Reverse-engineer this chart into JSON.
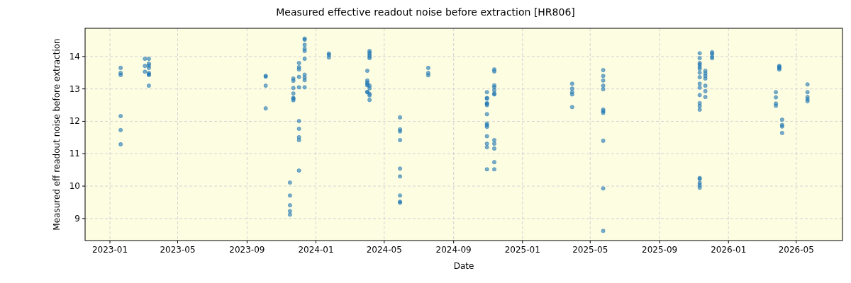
{
  "chart_data": {
    "type": "scatter",
    "title": "Measured effective readout noise before extraction [HR806]",
    "xlabel": "Date",
    "ylabel": "Measured eff readout noise before extraction",
    "xlim": [
      "2022-11-18",
      "2026-07-22"
    ],
    "ylim": [
      8.32,
      14.87
    ],
    "xticks": [
      "2023-01",
      "2023-05",
      "2023-09",
      "2024-01",
      "2024-05",
      "2024-09",
      "2025-01",
      "2025-05",
      "2025-09",
      "2026-01",
      "2026-05"
    ],
    "yticks": [
      9,
      10,
      11,
      12,
      13,
      14
    ],
    "grid": true,
    "marker": "circle",
    "series": [
      {
        "color": "#1f77b4",
        "x": [
          "2023-01-20",
          "2023-01-20",
          "2023-01-20",
          "2023-01-20",
          "2023-01-20",
          "2023-01-20",
          "2023-03-04",
          "2023-03-04",
          "2023-03-04",
          "2023-03-11",
          "2023-03-11",
          "2023-03-11",
          "2023-03-11",
          "2023-03-11",
          "2023-03-11",
          "2023-03-11",
          "2023-03-11",
          "2023-10-04",
          "2023-10-04",
          "2023-10-04",
          "2023-10-04",
          "2023-11-16",
          "2023-11-16",
          "2023-11-16",
          "2023-11-16",
          "2023-11-16",
          "2023-11-22",
          "2023-11-22",
          "2023-11-22",
          "2023-11-22",
          "2023-11-22",
          "2023-11-22",
          "2023-11-22",
          "2023-12-02",
          "2023-12-02",
          "2023-12-02",
          "2023-12-02",
          "2023-12-02",
          "2023-12-02",
          "2023-12-02",
          "2023-12-02",
          "2023-12-02",
          "2023-12-02",
          "2023-12-12",
          "2023-12-12",
          "2023-12-12",
          "2023-12-12",
          "2023-12-12",
          "2023-12-12",
          "2023-12-12",
          "2023-12-12",
          "2023-12-12",
          "2023-12-12",
          "2024-01-24",
          "2024-01-24",
          "2024-01-24",
          "2024-04-01",
          "2024-04-01",
          "2024-04-01",
          "2024-04-01",
          "2024-04-01",
          "2024-04-01",
          "2024-04-01",
          "2024-04-05",
          "2024-04-05",
          "2024-04-05",
          "2024-04-05",
          "2024-04-05",
          "2024-04-05",
          "2024-04-05",
          "2024-04-05",
          "2024-04-05",
          "2024-04-05",
          "2024-05-29",
          "2024-05-29",
          "2024-05-29",
          "2024-05-29",
          "2024-05-29",
          "2024-05-29",
          "2024-05-29",
          "2024-05-29",
          "2024-05-29",
          "2024-07-18",
          "2024-07-18",
          "2024-07-18",
          "2024-10-30",
          "2024-10-30",
          "2024-10-30",
          "2024-10-30",
          "2024-10-30",
          "2024-10-30",
          "2024-10-30",
          "2024-10-30",
          "2024-10-30",
          "2024-10-30",
          "2024-10-30",
          "2024-10-30",
          "2024-10-30",
          "2024-10-30",
          "2024-11-12",
          "2024-11-12",
          "2024-11-12",
          "2024-11-12",
          "2024-11-12",
          "2024-11-12",
          "2024-11-12",
          "2024-11-12",
          "2024-11-12",
          "2024-11-12",
          "2024-11-12",
          "2024-11-12",
          "2025-03-30",
          "2025-03-30",
          "2025-03-30",
          "2025-03-30",
          "2025-03-30",
          "2025-05-24",
          "2025-05-24",
          "2025-05-24",
          "2025-05-24",
          "2025-05-24",
          "2025-05-24",
          "2025-05-24",
          "2025-05-24",
          "2025-05-24",
          "2025-05-24",
          "2025-05-24",
          "2025-11-11",
          "2025-11-11",
          "2025-11-11",
          "2025-11-11",
          "2025-11-11",
          "2025-11-11",
          "2025-11-11",
          "2025-11-11",
          "2025-11-11",
          "2025-11-11",
          "2025-11-11",
          "2025-11-11",
          "2025-11-11",
          "2025-11-11",
          "2025-11-11",
          "2025-11-11",
          "2025-11-11",
          "2025-11-11",
          "2025-11-11",
          "2025-11-21",
          "2025-11-21",
          "2025-11-21",
          "2025-11-21",
          "2025-11-21",
          "2025-11-21",
          "2025-11-21",
          "2025-12-03",
          "2025-12-03",
          "2025-12-03",
          "2025-12-03",
          "2026-03-26",
          "2026-03-26",
          "2026-03-26",
          "2026-03-26",
          "2026-04-01",
          "2026-04-01",
          "2026-04-01",
          "2026-04-01",
          "2026-04-06",
          "2026-04-06",
          "2026-04-06",
          "2026-04-06",
          "2026-05-21",
          "2026-05-21",
          "2026-05-21",
          "2026-05-21",
          "2026-05-21"
        ],
        "values": [
          13.65,
          13.49,
          13.43,
          12.16,
          11.73,
          11.29,
          13.93,
          13.71,
          13.53,
          13.93,
          13.78,
          13.72,
          13.65,
          13.49,
          13.45,
          13.43,
          13.1,
          13.4,
          13.38,
          13.1,
          12.4,
          10.11,
          9.71,
          9.41,
          9.23,
          9.12,
          13.32,
          13.25,
          13.03,
          12.86,
          12.72,
          12.65,
          12.7,
          13.8,
          13.67,
          13.6,
          13.37,
          13.05,
          12.01,
          11.77,
          11.51,
          11.42,
          10.48,
          14.55,
          14.52,
          14.36,
          14.24,
          14.17,
          13.93,
          13.44,
          13.35,
          13.27,
          13.05,
          14.09,
          14.05,
          13.97,
          13.56,
          13.26,
          13.2,
          13.15,
          13.11,
          12.91,
          12.9,
          14.17,
          14.12,
          14.06,
          14.0,
          13.95,
          13.02,
          12.85,
          12.8,
          12.66,
          13.1,
          12.12,
          11.75,
          11.69,
          11.42,
          10.54,
          10.3,
          9.71,
          9.52,
          9.49,
          13.65,
          13.49,
          13.42,
          12.9,
          12.72,
          12.7,
          12.56,
          12.54,
          12.5,
          12.22,
          11.93,
          11.88,
          11.83,
          11.54,
          11.31,
          11.2,
          10.52,
          13.6,
          13.54,
          13.11,
          13.05,
          12.96,
          12.86,
          12.83,
          11.42,
          11.31,
          11.16,
          10.74,
          10.52,
          13.16,
          13.01,
          12.9,
          12.83,
          12.44,
          13.58,
          13.4,
          13.26,
          13.1,
          12.99,
          12.36,
          12.31,
          12.26,
          11.4,
          9.93,
          8.62,
          14.1,
          13.95,
          13.8,
          13.75,
          13.68,
          13.62,
          13.5,
          13.36,
          13.16,
          13.04,
          12.81,
          12.56,
          12.47,
          12.36,
          10.25,
          10.22,
          10.1,
          10.03,
          9.95,
          13.56,
          13.48,
          13.4,
          13.32,
          13.1,
          12.93,
          12.75,
          14.13,
          14.09,
          14.0,
          13.95,
          12.9,
          12.74,
          12.55,
          12.48,
          13.71,
          13.68,
          13.64,
          13.6,
          12.05,
          11.89,
          11.84,
          11.64,
          13.14,
          12.9,
          12.75,
          12.68,
          12.62
        ]
      }
    ]
  }
}
